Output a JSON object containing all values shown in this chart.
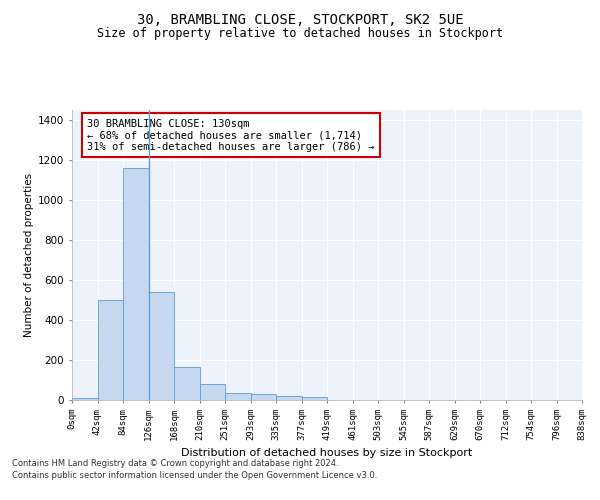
{
  "title": "30, BRAMBLING CLOSE, STOCKPORT, SK2 5UE",
  "subtitle": "Size of property relative to detached houses in Stockport",
  "xlabel": "Distribution of detached houses by size in Stockport",
  "ylabel": "Number of detached properties",
  "bar_color": "#c5d8f0",
  "bar_edge_color": "#5a9fd4",
  "background_color": "#eef2fb",
  "grid_color": "#ffffff",
  "annotation_text": "30 BRAMBLING CLOSE: 130sqm\n← 68% of detached houses are smaller (1,714)\n31% of semi-detached houses are larger (786) →",
  "annotation_box_color": "#ffffff",
  "annotation_box_edge": "#cc0000",
  "property_line_x": 3,
  "tick_labels": [
    "0sqm",
    "42sqm",
    "84sqm",
    "126sqm",
    "168sqm",
    "210sqm",
    "251sqm",
    "293sqm",
    "335sqm",
    "377sqm",
    "419sqm",
    "461sqm",
    "503sqm",
    "545sqm",
    "587sqm",
    "629sqm",
    "670sqm",
    "712sqm",
    "754sqm",
    "796sqm",
    "838sqm"
  ],
  "bar_values": [
    10,
    500,
    1160,
    540,
    165,
    82,
    35,
    28,
    20,
    15,
    0,
    0,
    0,
    0,
    0,
    0,
    0,
    0,
    0,
    0
  ],
  "ylim": [
    0,
    1450
  ],
  "yticks": [
    0,
    200,
    400,
    600,
    800,
    1000,
    1200,
    1400
  ],
  "footer_line1": "Contains HM Land Registry data © Crown copyright and database right 2024.",
  "footer_line2": "Contains public sector information licensed under the Open Government Licence v3.0."
}
